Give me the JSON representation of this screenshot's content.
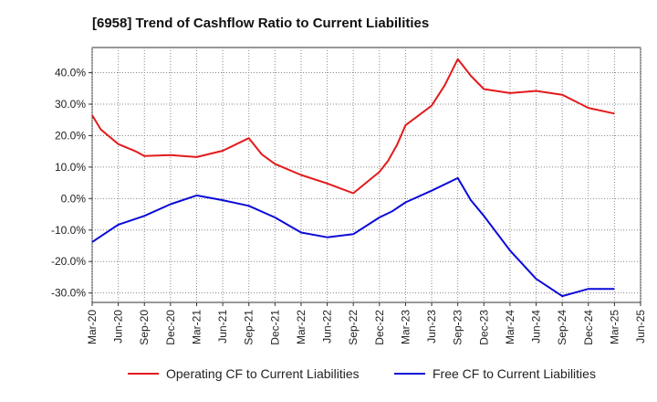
{
  "chart_data": {
    "type": "line",
    "title": "[6958]  Trend of Cashflow Ratio to Current Liabilities",
    "xlabel": "",
    "ylabel": "",
    "ylim": [
      -33,
      48
    ],
    "yticks": [
      40,
      30,
      20,
      10,
      0,
      -10,
      -20,
      -30
    ],
    "ytick_labels": [
      "40.0%",
      "30.0%",
      "20.0%",
      "10.0%",
      "0.0%",
      "-10.0%",
      "-20.0%",
      "-30.0%"
    ],
    "xticks": [
      "Mar-20",
      "Jun-20",
      "Sep-20",
      "Dec-20",
      "Mar-21",
      "Jun-21",
      "Sep-21",
      "Dec-21",
      "Mar-22",
      "Jun-22",
      "Sep-22",
      "Dec-22",
      "Mar-23",
      "Jun-23",
      "Sep-23",
      "Dec-23",
      "Mar-24",
      "Jun-24",
      "Sep-24",
      "Dec-24",
      "Mar-25",
      "Jun-25"
    ],
    "grid": true,
    "legend_position": "bottom",
    "series": [
      {
        "name": "Operating CF to Current Liabilities",
        "color": "#e31a1c",
        "points": [
          [
            0,
            26.5
          ],
          [
            0.33,
            22
          ],
          [
            1,
            17.3
          ],
          [
            1.67,
            15
          ],
          [
            2,
            13.5
          ],
          [
            3,
            13.8
          ],
          [
            4,
            13.2
          ],
          [
            5,
            15.2
          ],
          [
            6,
            19.2
          ],
          [
            6.5,
            14
          ],
          [
            7,
            11
          ],
          [
            8,
            7.5
          ],
          [
            9,
            4.8
          ],
          [
            10,
            1.7
          ],
          [
            11,
            8.5
          ],
          [
            11.33,
            12
          ],
          [
            11.67,
            17
          ],
          [
            12,
            23.3
          ],
          [
            13,
            29.5
          ],
          [
            13.5,
            36
          ],
          [
            14,
            44.3
          ],
          [
            14.5,
            39
          ],
          [
            15,
            34.8
          ],
          [
            16,
            33.5
          ],
          [
            17,
            34.2
          ],
          [
            18,
            33
          ],
          [
            19,
            28.8
          ],
          [
            20,
            27
          ]
        ]
      },
      {
        "name": "Free CF to Current Liabilities",
        "color": "#0a0ad8",
        "points": [
          [
            0,
            -13.8
          ],
          [
            1,
            -8.3
          ],
          [
            2,
            -5.5
          ],
          [
            3,
            -1.8
          ],
          [
            4,
            1
          ],
          [
            5,
            -0.5
          ],
          [
            6,
            -2.3
          ],
          [
            7,
            -6
          ],
          [
            8,
            -10.8
          ],
          [
            9,
            -12.3
          ],
          [
            10,
            -11.3
          ],
          [
            11,
            -6
          ],
          [
            11.5,
            -4
          ],
          [
            12,
            -1.2
          ],
          [
            13,
            2.5
          ],
          [
            14,
            6.5
          ],
          [
            14.5,
            -0.5
          ],
          [
            15,
            -5.5
          ],
          [
            16,
            -16.5
          ],
          [
            17,
            -25.5
          ],
          [
            18,
            -31
          ],
          [
            19,
            -28.7
          ],
          [
            20,
            -28.7
          ]
        ]
      }
    ]
  }
}
